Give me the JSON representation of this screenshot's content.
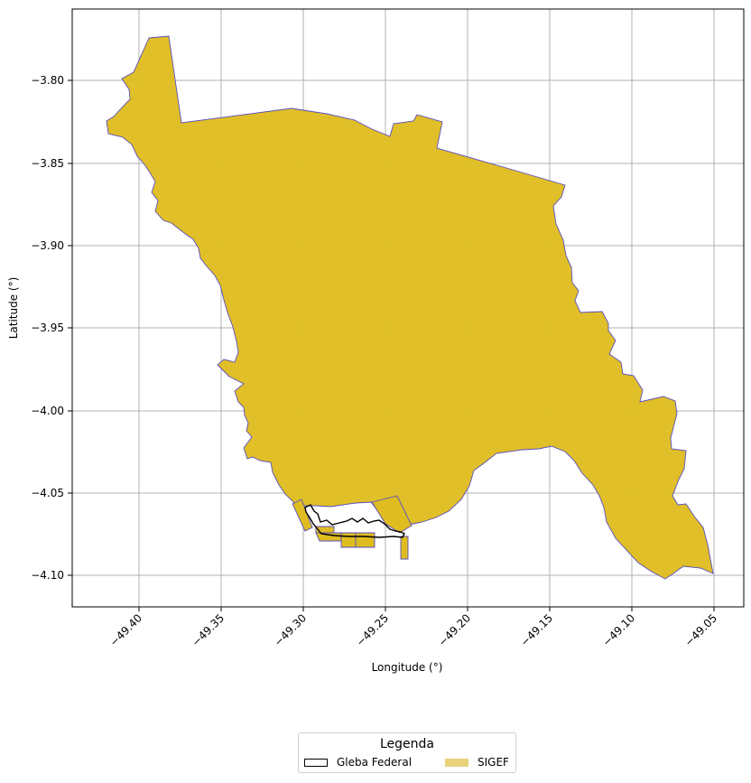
{
  "map": {
    "xlabel": "Longitude (°)",
    "ylabel": "Latitude (°)",
    "xlim": [
      -49.44,
      -49.03
    ],
    "ylim": [
      -4.12,
      -3.77
    ],
    "grid": true,
    "x_ticks": [
      "−49.40",
      "−49.35",
      "−49.30",
      "−49.25",
      "−49.20",
      "−49.15",
      "−49.10",
      "−49.05"
    ],
    "y_ticks": [
      "−3.80",
      "−3.85",
      "−3.90",
      "−3.95",
      "−4.00",
      "−4.05",
      "−4.10"
    ],
    "tick_label_rotation_deg": -45
  },
  "legend": {
    "title": "Legenda",
    "placement": "below the map, centered",
    "items": [
      {
        "label": "Gleba Federal",
        "style": "outline",
        "color": "#000000"
      },
      {
        "label": "SIGEF",
        "style": "fill",
        "color": "#e8d27a"
      }
    ]
  },
  "colors": {
    "sigef_fill": "#dfbd21",
    "sigef_edge": "#5a4ec0",
    "gleba_edge": "#000000",
    "grid": "#b0b0b0"
  }
}
